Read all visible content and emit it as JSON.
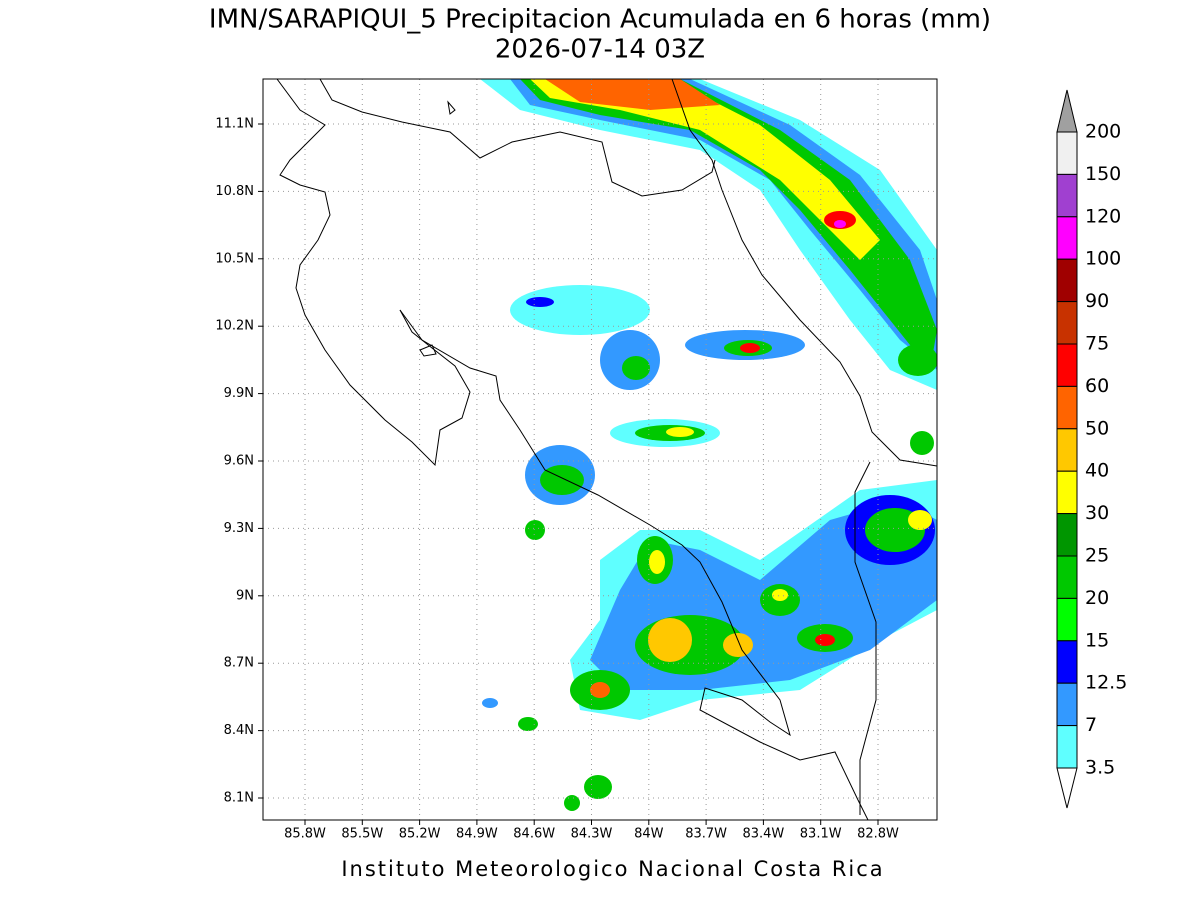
{
  "map": {
    "title": "IMN/SARAPIQUI_5 Precipitacion Acumulada en 6 horas (mm)",
    "subtitle": "2026-07-14 03Z",
    "lat_labels": [
      "11.1N",
      "10.8N",
      "10.5N",
      "10.2N",
      "9.9N",
      "9.6N",
      "9.3N",
      "9N",
      "8.7N",
      "8.4N",
      "8.1N"
    ],
    "lon_labels": [
      "85.8W",
      "85.5W",
      "85.2W",
      "84.9W",
      "84.6W",
      "84.3W",
      "84W",
      "83.7W",
      "83.4W",
      "83.1W",
      "82.8W"
    ],
    "colorbar": {
      "labels": [
        200,
        150,
        120,
        100,
        90,
        75,
        60,
        50,
        40,
        30,
        25,
        20,
        15,
        12.5,
        7,
        3.5
      ],
      "colors": [
        "#f0f0f0",
        "#a040d0",
        "#ff00ff",
        "#a00000",
        "#c83200",
        "#ff0000",
        "#ff6400",
        "#ffc800",
        "#ffff00",
        "#009600",
        "#00c800",
        "#00ff00",
        "#0000ff",
        "#3399ff",
        "#5fffff"
      ]
    },
    "footer": "Instituto Meteorologico Nacional Costa Rica"
  }
}
